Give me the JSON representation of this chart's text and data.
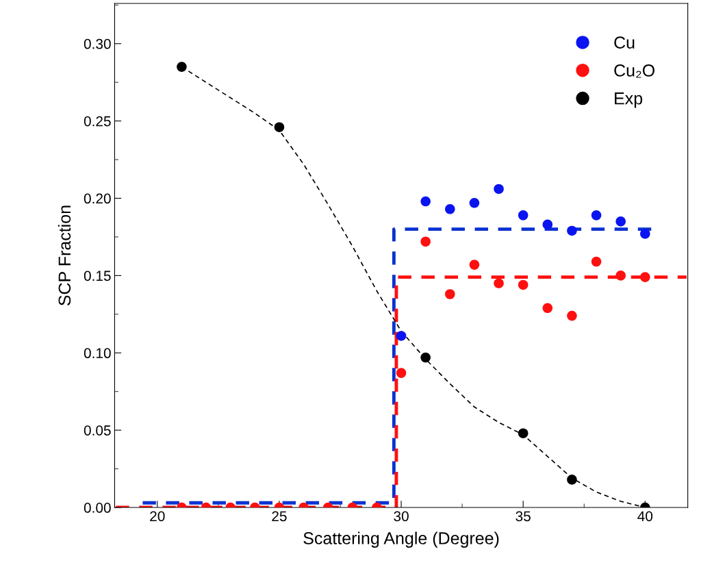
{
  "chart_data": {
    "type": "scatter",
    "xlabel": "Scattering Angle (Degree)",
    "ylabel": "SCP Fraction",
    "xlim": [
      18.25,
      41.75
    ],
    "ylim": [
      0,
      0.326
    ],
    "xticks": [
      20,
      25,
      30,
      35,
      40
    ],
    "yticks": [
      {
        "value": 0,
        "label": "0.00"
      },
      {
        "value": 0.05,
        "label": "0.05"
      },
      {
        "value": 0.1,
        "label": "0.10"
      },
      {
        "value": 0.15,
        "label": "0.15"
      },
      {
        "value": 0.2,
        "label": "0.20"
      },
      {
        "value": 0.25,
        "label": "0.25"
      },
      {
        "value": 0.3,
        "label": "0.30"
      }
    ],
    "legend": "top right",
    "grid": false,
    "series": [
      {
        "name": "Cu",
        "marker": "circle",
        "color": "#0a14f0",
        "x": [
          30,
          31,
          32,
          33,
          34,
          35,
          36,
          37,
          38,
          39,
          40
        ],
        "values": [
          0.111,
          0.198,
          0.193,
          0.197,
          0.206,
          0.189,
          0.183,
          0.179,
          0.189,
          0.185,
          0.177
        ]
      },
      {
        "name": "Cu₂O",
        "marker": "circle",
        "color": "#ff1010",
        "x": [
          21,
          22,
          23,
          24,
          25,
          26,
          27,
          28,
          29,
          30,
          31,
          32,
          33,
          34,
          35,
          36,
          37,
          38,
          39,
          40
        ],
        "values": [
          0,
          0,
          0,
          0,
          0,
          0,
          0,
          0,
          0,
          0.087,
          0.172,
          0.138,
          0.157,
          0.145,
          0.144,
          0.129,
          0.124,
          0.159,
          0.15,
          0.149
        ]
      },
      {
        "name": "Exp",
        "marker": "circle",
        "color": "#000000",
        "x": [
          21,
          25,
          31,
          35,
          37,
          40
        ],
        "values": [
          0.285,
          0.246,
          0.097,
          0.048,
          0.018,
          0
        ]
      },
      {
        "type": "step",
        "color": "#0a32d2",
        "line_style": "dashed",
        "x": [
          19.4,
          29.7,
          40.4
        ],
        "values": [
          0.003,
          0.18,
          0.18
        ]
      },
      {
        "type": "step",
        "color": "#ff1010",
        "line_style": "dashed",
        "x": [
          18.3,
          29.8,
          41.7
        ],
        "values": [
          0,
          0.149,
          0.149
        ]
      },
      {
        "type": "line",
        "color": "#000000",
        "line_style": "dashed",
        "x": [
          21,
          22,
          23,
          24,
          25,
          26,
          27,
          28,
          29,
          30,
          31,
          32,
          33,
          34,
          35,
          36,
          37,
          38,
          39,
          40
        ],
        "values": [
          0.285,
          0.275,
          0.265,
          0.255,
          0.244,
          0.222,
          0.196,
          0.169,
          0.14,
          0.114,
          0.096,
          0.08,
          0.065,
          0.055,
          0.047,
          0.033,
          0.019,
          0.01,
          0.004,
          0
        ]
      }
    ]
  }
}
